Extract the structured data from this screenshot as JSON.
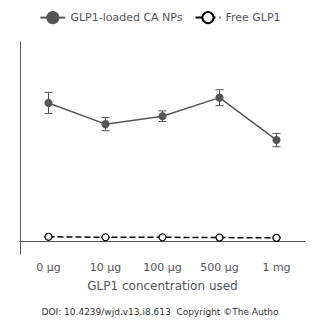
{
  "chart_data": {
    "type": "line",
    "categories": [
      "0 μg",
      "10 μg",
      "100 μg",
      "500 μg",
      "1 mg"
    ],
    "series": [
      {
        "name": "GLP1-loaded CA NPs",
        "color": "#555555",
        "marker": "filled_circle",
        "line_style": "solid",
        "values": [
          0.52,
          0.44,
          0.47,
          0.54,
          0.38
        ],
        "errors": [
          0.04,
          0.025,
          0.02,
          0.03,
          0.025
        ]
      },
      {
        "name": "Free GLP1",
        "color": "#000000",
        "marker": "open_circle",
        "line_style": "dashed",
        "values": [
          0.015,
          0.013,
          0.013,
          0.012,
          0.011
        ],
        "errors": [
          0.002,
          0.001,
          0.001,
          0.001,
          0.001
        ]
      }
    ],
    "xlabel": "GLP1 concentration used",
    "ylim": [
      -0.05,
      0.75
    ],
    "tick_labels": "x",
    "grid": false,
    "legend": "top",
    "annotations": [
      "DOI: 10.4239/wjd.v13.i8.613  Copyright ©The Autho"
    ]
  }
}
